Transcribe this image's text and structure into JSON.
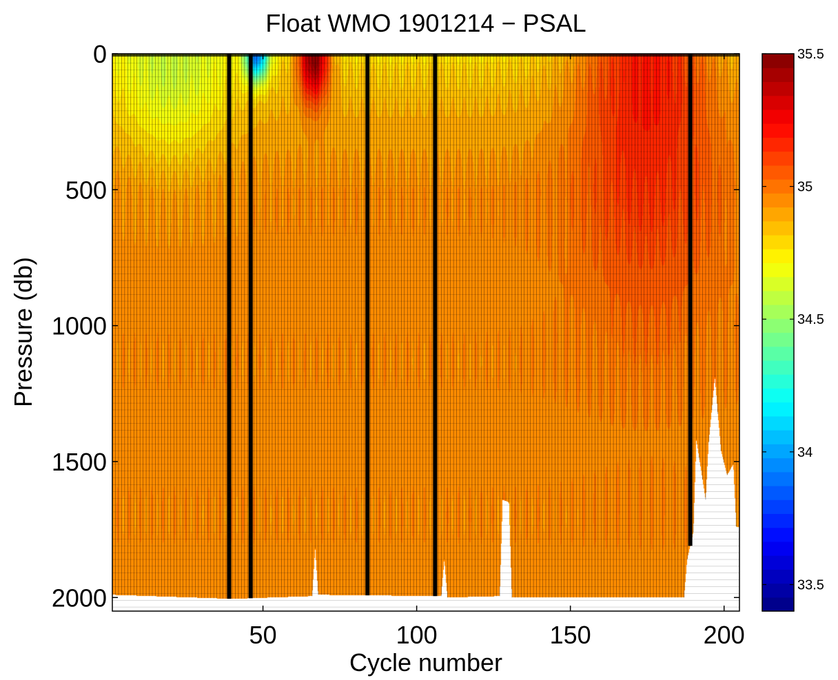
{
  "chart_data": {
    "type": "heatmap",
    "title": "Float WMO 1901214 − PSAL",
    "xlabel": "Cycle number",
    "ylabel": "Pressure (db)",
    "xlim": [
      1,
      205
    ],
    "ylim": [
      2050,
      0
    ],
    "y_reversed": true,
    "x_ticks": [
      50,
      100,
      150,
      200
    ],
    "x_tick_labels": [
      "50",
      "100",
      "150",
      "200"
    ],
    "y_ticks": [
      0,
      500,
      1000,
      1500,
      2000
    ],
    "y_tick_labels": [
      "0",
      "500",
      "1000",
      "1500",
      "2000"
    ],
    "colorbar": {
      "colormap": "jet",
      "clim": [
        33.4,
        35.5
      ],
      "ticks": [
        33.5,
        34,
        34.5,
        35,
        35.5
      ],
      "tick_labels": [
        "33.5",
        "34",
        "34.5",
        "35",
        "35.5"
      ]
    },
    "max_pressure_db": [
      {
        "cycle": 1,
        "pressure": 1990
      },
      {
        "cycle": 40,
        "pressure": 2005
      },
      {
        "cycle": 66,
        "pressure": 1995
      },
      {
        "cycle": 67,
        "pressure": 1820
      },
      {
        "cycle": 68,
        "pressure": 1990
      },
      {
        "cycle": 108,
        "pressure": 1995
      },
      {
        "cycle": 109,
        "pressure": 1860
      },
      {
        "cycle": 110,
        "pressure": 2000
      },
      {
        "cycle": 127,
        "pressure": 1995
      },
      {
        "cycle": 128,
        "pressure": 1640
      },
      {
        "cycle": 130,
        "pressure": 1650
      },
      {
        "cycle": 131,
        "pressure": 2000
      },
      {
        "cycle": 187,
        "pressure": 2000
      },
      {
        "cycle": 188,
        "pressure": 1860
      },
      {
        "cycle": 190,
        "pressure": 1760
      },
      {
        "cycle": 191,
        "pressure": 1420
      },
      {
        "cycle": 194,
        "pressure": 1640
      },
      {
        "cycle": 195,
        "pressure": 1430
      },
      {
        "cycle": 197,
        "pressure": 1190
      },
      {
        "cycle": 199,
        "pressure": 1460
      },
      {
        "cycle": 201,
        "pressure": 1550
      },
      {
        "cycle": 203,
        "pressure": 1510
      },
      {
        "cycle": 204,
        "pressure": 1740
      }
    ],
    "dark_gap_columns_cycle": [
      39,
      46,
      84,
      106,
      189
    ],
    "salinity_features": [
      {
        "name": "fresh surface (green)",
        "cycles": [
          1,
          40
        ],
        "pressure": [
          0,
          450
        ],
        "salinity": 34.6
      },
      {
        "name": "fresh surface minimum (blue)",
        "cycles": [
          44,
          52
        ],
        "pressure": [
          0,
          120
        ],
        "salinity": 33.9
      },
      {
        "name": "salty surface maximum (dark red)",
        "cycles": [
          61,
          72
        ],
        "pressure": [
          0,
          220
        ],
        "salinity": 35.5
      },
      {
        "name": "salty intermediate (orange-red)",
        "cycles": [
          150,
          200
        ],
        "pressure": [
          100,
          1000
        ],
        "salinity": 35.2
      },
      {
        "name": "deep water",
        "cycles": [
          1,
          205
        ],
        "pressure": [
          500,
          2000
        ],
        "salinity": 34.95
      }
    ]
  }
}
